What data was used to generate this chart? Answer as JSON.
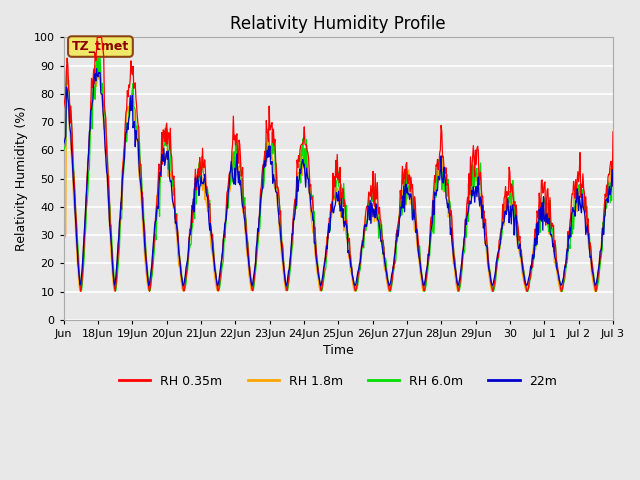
{
  "title": "Relativity Humidity Profile",
  "xlabel": "Time",
  "ylabel": "Relativity Humidity (%)",
  "ylim": [
    0,
    100
  ],
  "annotation_text": "TZ_tmet",
  "annotation_bg": "#f0e868",
  "annotation_border": "#8B4513",
  "background_color": "#e8e8e8",
  "plot_bg_color": "#e8e8e8",
  "grid_color": "#ffffff",
  "series": [
    {
      "label": "RH 0.35m",
      "color": "#ff0000"
    },
    {
      "label": "RH 1.8m",
      "color": "#ffa500"
    },
    {
      "label": "RH 6.0m",
      "color": "#00dd00"
    },
    {
      "label": "22m",
      "color": "#0000cc"
    }
  ],
  "xtick_labels": [
    "Jun",
    "18Jun",
    "19Jun",
    "20Jun",
    "21Jun",
    "22Jun",
    "23Jun",
    "24Jun",
    "25Jun",
    "26Jun",
    "27Jun",
    "28Jun",
    "29Jun",
    "30",
    "Jul 1",
    "Jul 2",
    "Jul 3"
  ],
  "title_fontsize": 12,
  "axis_fontsize": 9,
  "tick_fontsize": 8,
  "legend_fontsize": 9
}
